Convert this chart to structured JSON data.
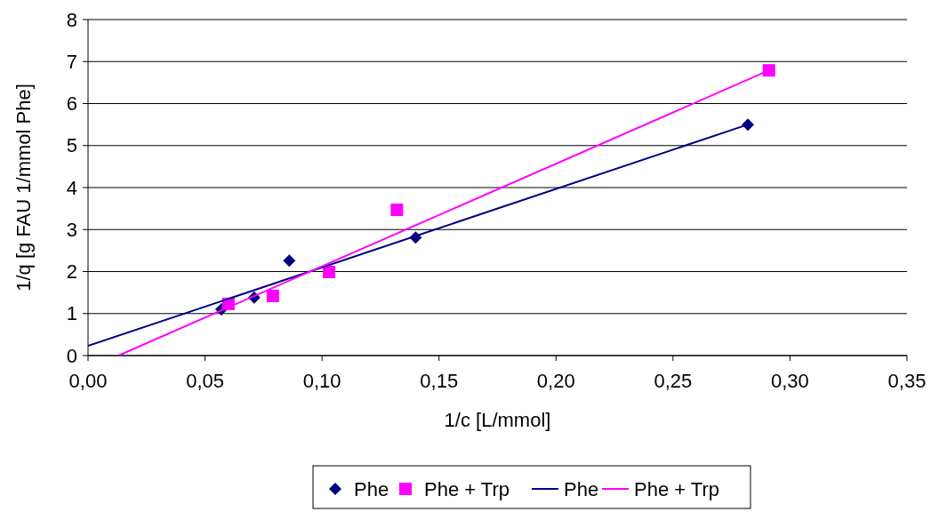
{
  "chart_data": {
    "type": "scatter",
    "xlabel": "1/c [L/mmol]",
    "ylabel": "1/q [g FAU 1/mmol Phe]",
    "xlim": [
      0,
      0.35
    ],
    "ylim": [
      0,
      8
    ],
    "xticks": [
      {
        "value": 0,
        "label": "0,00"
      },
      {
        "value": 0.05,
        "label": "0,05"
      },
      {
        "value": 0.1,
        "label": "0,10"
      },
      {
        "value": 0.15,
        "label": "0,15"
      },
      {
        "value": 0.2,
        "label": "0,20"
      },
      {
        "value": 0.25,
        "label": "0,25"
      },
      {
        "value": 0.3,
        "label": "0,30"
      },
      {
        "value": 0.35,
        "label": "0,35"
      }
    ],
    "yticks": [
      0,
      1,
      2,
      3,
      4,
      5,
      6,
      7,
      8
    ],
    "grid": "y",
    "legend": "bottom",
    "series": [
      {
        "name": "Phe",
        "type": "scatter",
        "marker": "diamond",
        "color": "#000080",
        "x": [
          0.057,
          0.071,
          0.086,
          0.14,
          0.282
        ],
        "values": [
          1.1,
          1.38,
          2.26,
          2.81,
          5.5
        ]
      },
      {
        "name": "Phe + Trp",
        "type": "scatter",
        "marker": "square",
        "color": "#ff00ff",
        "x": [
          0.06,
          0.079,
          0.103,
          0.132,
          0.291
        ],
        "values": [
          1.23,
          1.42,
          1.99,
          3.47,
          6.79
        ]
      },
      {
        "name": "Phe",
        "type": "line",
        "marker": "none",
        "color": "#000080",
        "x": [
          0,
          0.282
        ],
        "values": [
          0.23,
          5.5
        ]
      },
      {
        "name": "Phe + Trp",
        "type": "line",
        "marker": "none",
        "color": "#ff00ff",
        "x": [
          0.013,
          0.291
        ],
        "values": [
          0,
          6.79
        ]
      }
    ]
  }
}
